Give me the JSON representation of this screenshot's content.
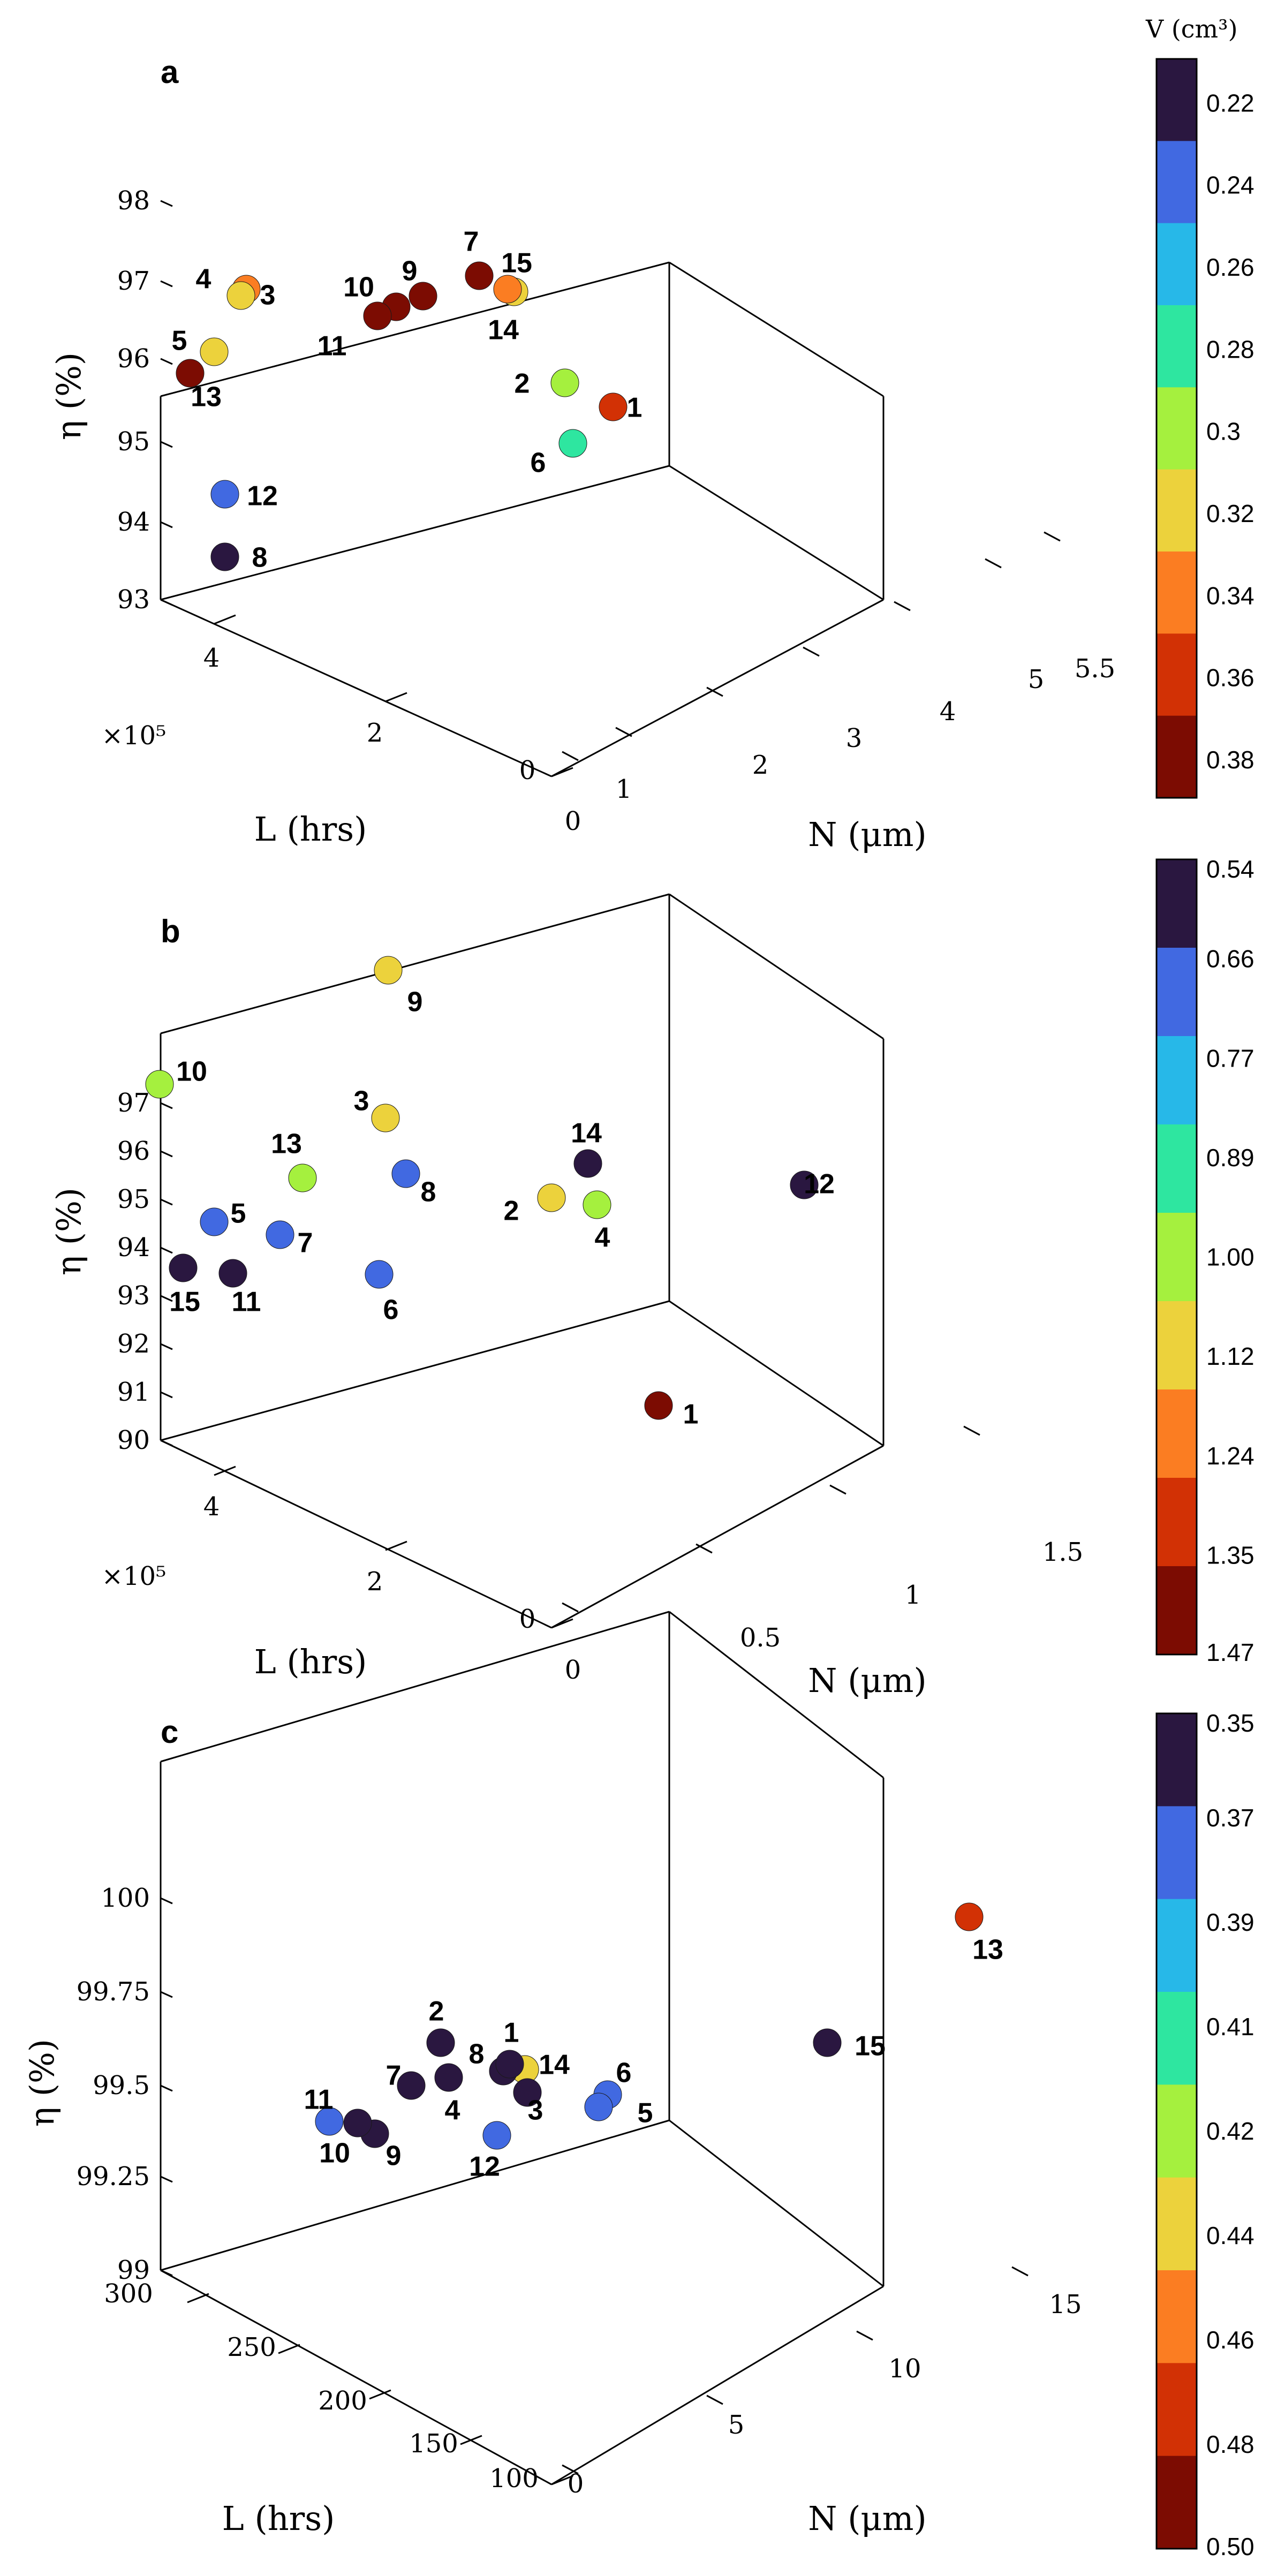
{
  "colorbar_title": "V (cm³)",
  "chart_data": [
    {
      "type": "scatter",
      "panel": "a",
      "dimensions": "3d",
      "zlabel": "η (%)",
      "ylabel": "L (hrs)",
      "xlabel": "N (μm)",
      "y_exponent": "×10⁵",
      "z_ticks": [
        "93",
        "94",
        "95",
        "96",
        "97",
        "98"
      ],
      "y_ticks": [
        "0",
        "2",
        "4"
      ],
      "x_ticks": [
        "0",
        "1",
        "2",
        "3",
        "4",
        "5",
        "5.5"
      ],
      "colorbar_ticks": [
        "0.22",
        "0.24",
        "0.26",
        "0.28",
        "0.3",
        "0.32",
        "0.34",
        "0.36",
        "0.38"
      ],
      "colorbar_colors": [
        "#2a1740",
        "#4169e1",
        "#27b8e8",
        "#2ee6a0",
        "#a5f03e",
        "#ecd23c",
        "#fb7d22",
        "#d23105",
        "#7c0c02"
      ],
      "points": [
        {
          "label": "1",
          "color": "#d23105"
        },
        {
          "label": "2",
          "color": "#a5f03e"
        },
        {
          "label": "3",
          "color": "#fb7d22"
        },
        {
          "label": "4",
          "color": "#ecd23c"
        },
        {
          "label": "5",
          "color": "#ecd23c"
        },
        {
          "label": "6",
          "color": "#2ee6a0"
        },
        {
          "label": "7",
          "color": "#7c0c02"
        },
        {
          "label": "8",
          "color": "#2a1740"
        },
        {
          "label": "9",
          "color": "#7c0c02"
        },
        {
          "label": "10",
          "color": "#7c0c02"
        },
        {
          "label": "11",
          "color": "#7c0c02"
        },
        {
          "label": "12",
          "color": "#4169e1"
        },
        {
          "label": "13",
          "color": "#7c0c02"
        },
        {
          "label": "14",
          "color": "#ecd23c"
        },
        {
          "label": "15",
          "color": "#fb7d22"
        }
      ]
    },
    {
      "type": "scatter",
      "panel": "b",
      "dimensions": "3d",
      "zlabel": "η (%)",
      "ylabel": "L (hrs)",
      "xlabel": "N (μm)",
      "y_exponent": "×10⁵",
      "z_ticks": [
        "90",
        "91",
        "92",
        "93",
        "94",
        "95",
        "96",
        "97"
      ],
      "y_ticks": [
        "0",
        "2",
        "4"
      ],
      "x_ticks": [
        "0",
        "0.5",
        "1",
        "1.5"
      ],
      "colorbar_ticks": [
        "0.54",
        "0.66",
        "0.77",
        "0.89",
        "1.00",
        "1.12",
        "1.24",
        "1.35",
        "1.47"
      ],
      "colorbar_colors": [
        "#2a1740",
        "#4169e1",
        "#27b8e8",
        "#2ee6a0",
        "#a5f03e",
        "#ecd23c",
        "#fb7d22",
        "#d23105",
        "#7c0c02"
      ],
      "points": [
        {
          "label": "1",
          "color": "#7c0c02"
        },
        {
          "label": "2",
          "color": "#ecd23c"
        },
        {
          "label": "3",
          "color": "#ecd23c"
        },
        {
          "label": "4",
          "color": "#a5f03e"
        },
        {
          "label": "5",
          "color": "#4169e1"
        },
        {
          "label": "6",
          "color": "#4169e1"
        },
        {
          "label": "7",
          "color": "#4169e1"
        },
        {
          "label": "8",
          "color": "#4169e1"
        },
        {
          "label": "9",
          "color": "#ecd23c"
        },
        {
          "label": "10",
          "color": "#a5f03e"
        },
        {
          "label": "11",
          "color": "#2a1740"
        },
        {
          "label": "12",
          "color": "#2a1740"
        },
        {
          "label": "13",
          "color": "#a5f03e"
        },
        {
          "label": "14",
          "color": "#2a1740"
        },
        {
          "label": "15",
          "color": "#2a1740"
        }
      ]
    },
    {
      "type": "scatter",
      "panel": "c",
      "dimensions": "3d",
      "zlabel": "η (%)",
      "ylabel": "L (hrs)",
      "xlabel": "N (μm)",
      "z_ticks": [
        "99",
        "99.25",
        "99.5",
        "99.75",
        "100"
      ],
      "y_ticks": [
        "100",
        "150",
        "200",
        "250",
        "300"
      ],
      "x_ticks": [
        "0",
        "5",
        "10",
        "15"
      ],
      "colorbar_ticks": [
        "0.35",
        "0.37",
        "0.39",
        "0.41",
        "0.42",
        "0.44",
        "0.46",
        "0.48",
        "0.50"
      ],
      "colorbar_colors": [
        "#2a1740",
        "#4169e1",
        "#27b8e8",
        "#2ee6a0",
        "#a5f03e",
        "#ecd23c",
        "#fb7d22",
        "#d23105",
        "#7c0c02"
      ],
      "points": [
        {
          "label": "1",
          "color": "#ecd23c"
        },
        {
          "label": "2",
          "color": "#2a1740"
        },
        {
          "label": "3",
          "color": "#2a1740"
        },
        {
          "label": "4",
          "color": "#2a1740"
        },
        {
          "label": "5",
          "color": "#4169e1"
        },
        {
          "label": "6",
          "color": "#4169e1"
        },
        {
          "label": "7",
          "color": "#2a1740"
        },
        {
          "label": "8",
          "color": "#2a1740"
        },
        {
          "label": "9",
          "color": "#2a1740"
        },
        {
          "label": "10",
          "color": "#2a1740"
        },
        {
          "label": "11",
          "color": "#4169e1"
        },
        {
          "label": "12",
          "color": "#4169e1"
        },
        {
          "label": "13",
          "color": "#d23105"
        },
        {
          "label": "14",
          "color": "#2a1740"
        },
        {
          "label": "15",
          "color": "#2a1740"
        }
      ]
    }
  ]
}
